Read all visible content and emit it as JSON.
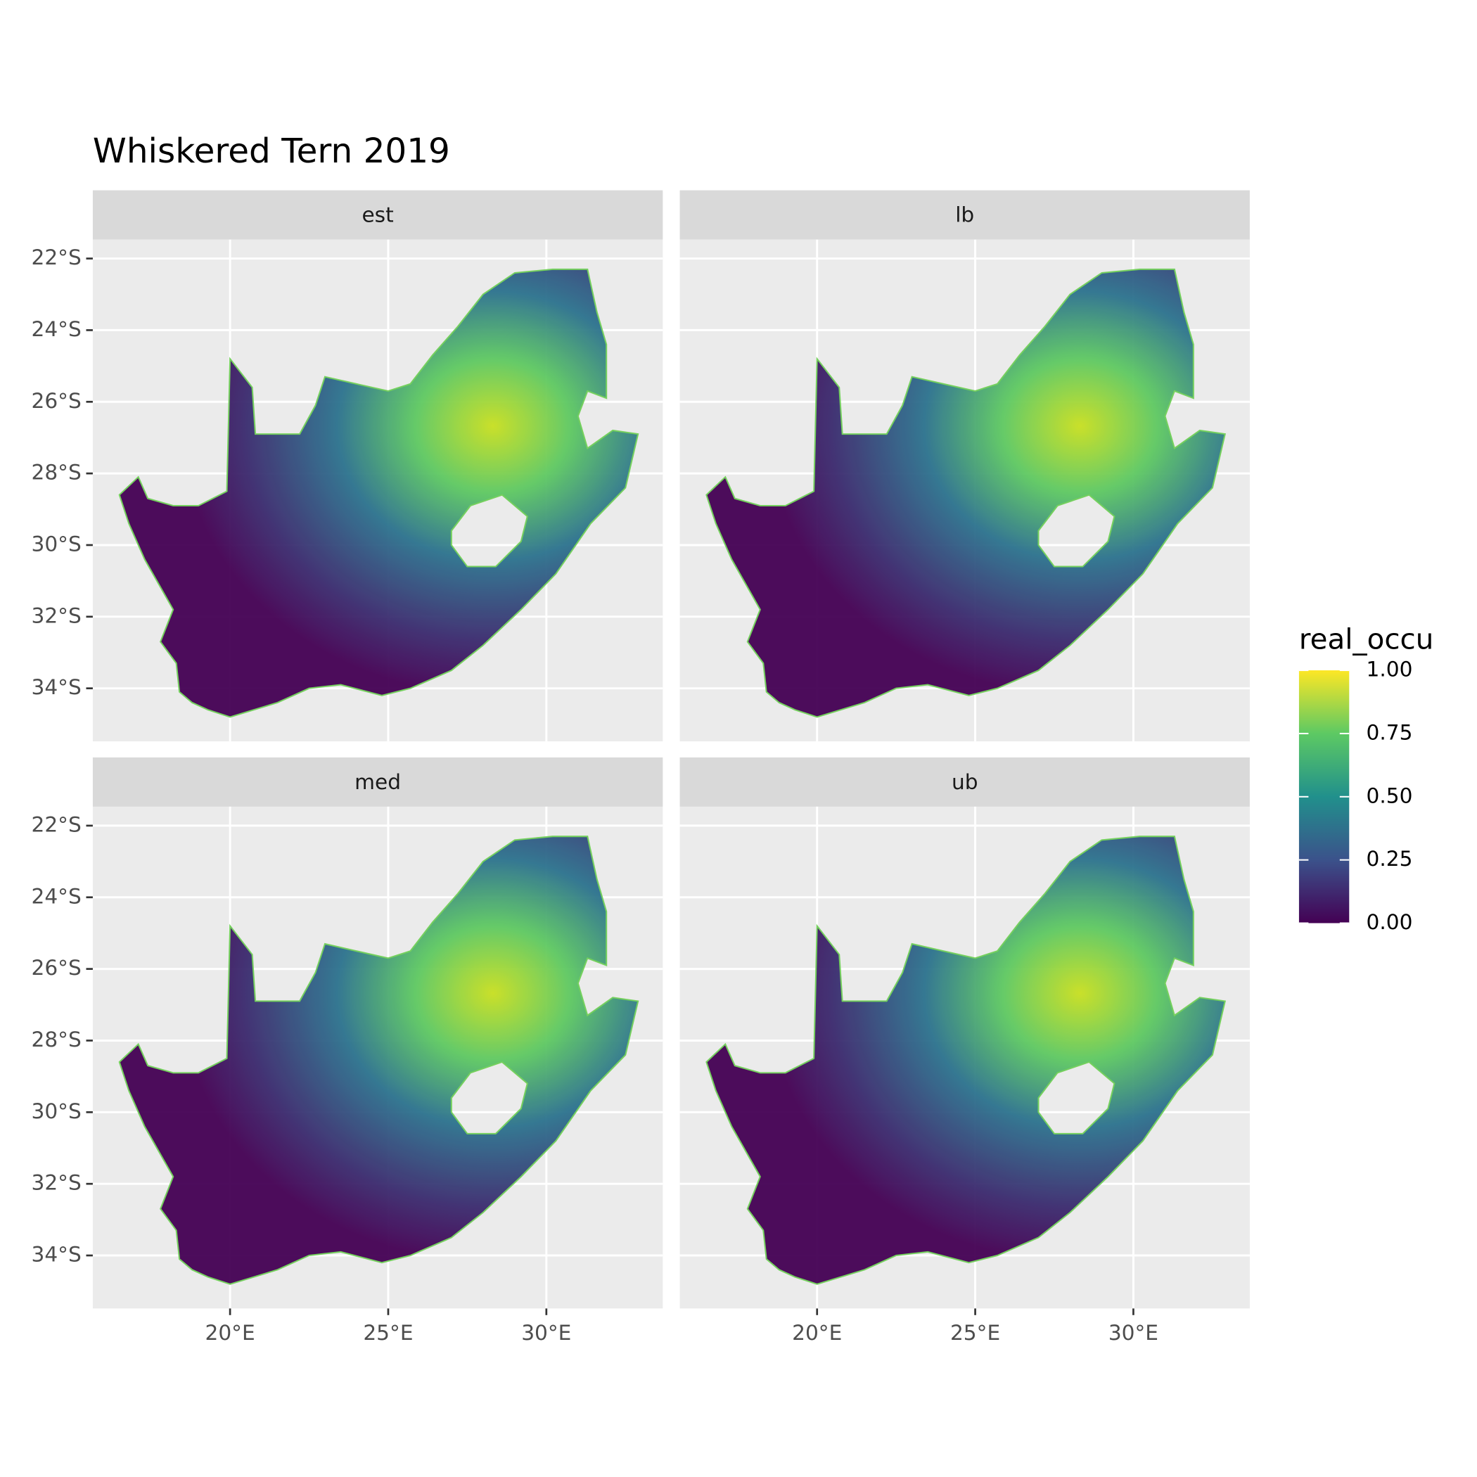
{
  "chart_data": {
    "type": "raster-map",
    "title": "Whiskered Tern 2019",
    "facets": [
      "est",
      "lb",
      "med",
      "ub"
    ],
    "xlim": [
      15.66,
      33.68
    ],
    "ylim": [
      -35.48,
      -21.47
    ],
    "xticks": [
      {
        "value": 20,
        "label": "20°E"
      },
      {
        "value": 25,
        "label": "25°E"
      },
      {
        "value": 30,
        "label": "30°E"
      }
    ],
    "yticks": [
      {
        "value": -22,
        "label": "22°S"
      },
      {
        "value": -24,
        "label": "24°S"
      },
      {
        "value": -26,
        "label": "26°S"
      },
      {
        "value": -28,
        "label": "28°S"
      },
      {
        "value": -30,
        "label": "30°S"
      },
      {
        "value": -32,
        "label": "32°S"
      },
      {
        "value": -34,
        "label": "34°S"
      }
    ],
    "grid": true,
    "legend": {
      "title": "real_occu",
      "limits": [
        0,
        1
      ],
      "colors": [
        "#440154",
        "#3b528b",
        "#21908c",
        "#5dc963",
        "#fde725"
      ],
      "ticks": [
        {
          "value": 0,
          "label": "0.00"
        },
        {
          "value": 0.25,
          "label": "0.25"
        },
        {
          "value": 0.5,
          "label": "0.50"
        },
        {
          "value": 0.75,
          "label": "0.75"
        },
        {
          "value": 1,
          "label": "1.00"
        }
      ]
    }
  }
}
